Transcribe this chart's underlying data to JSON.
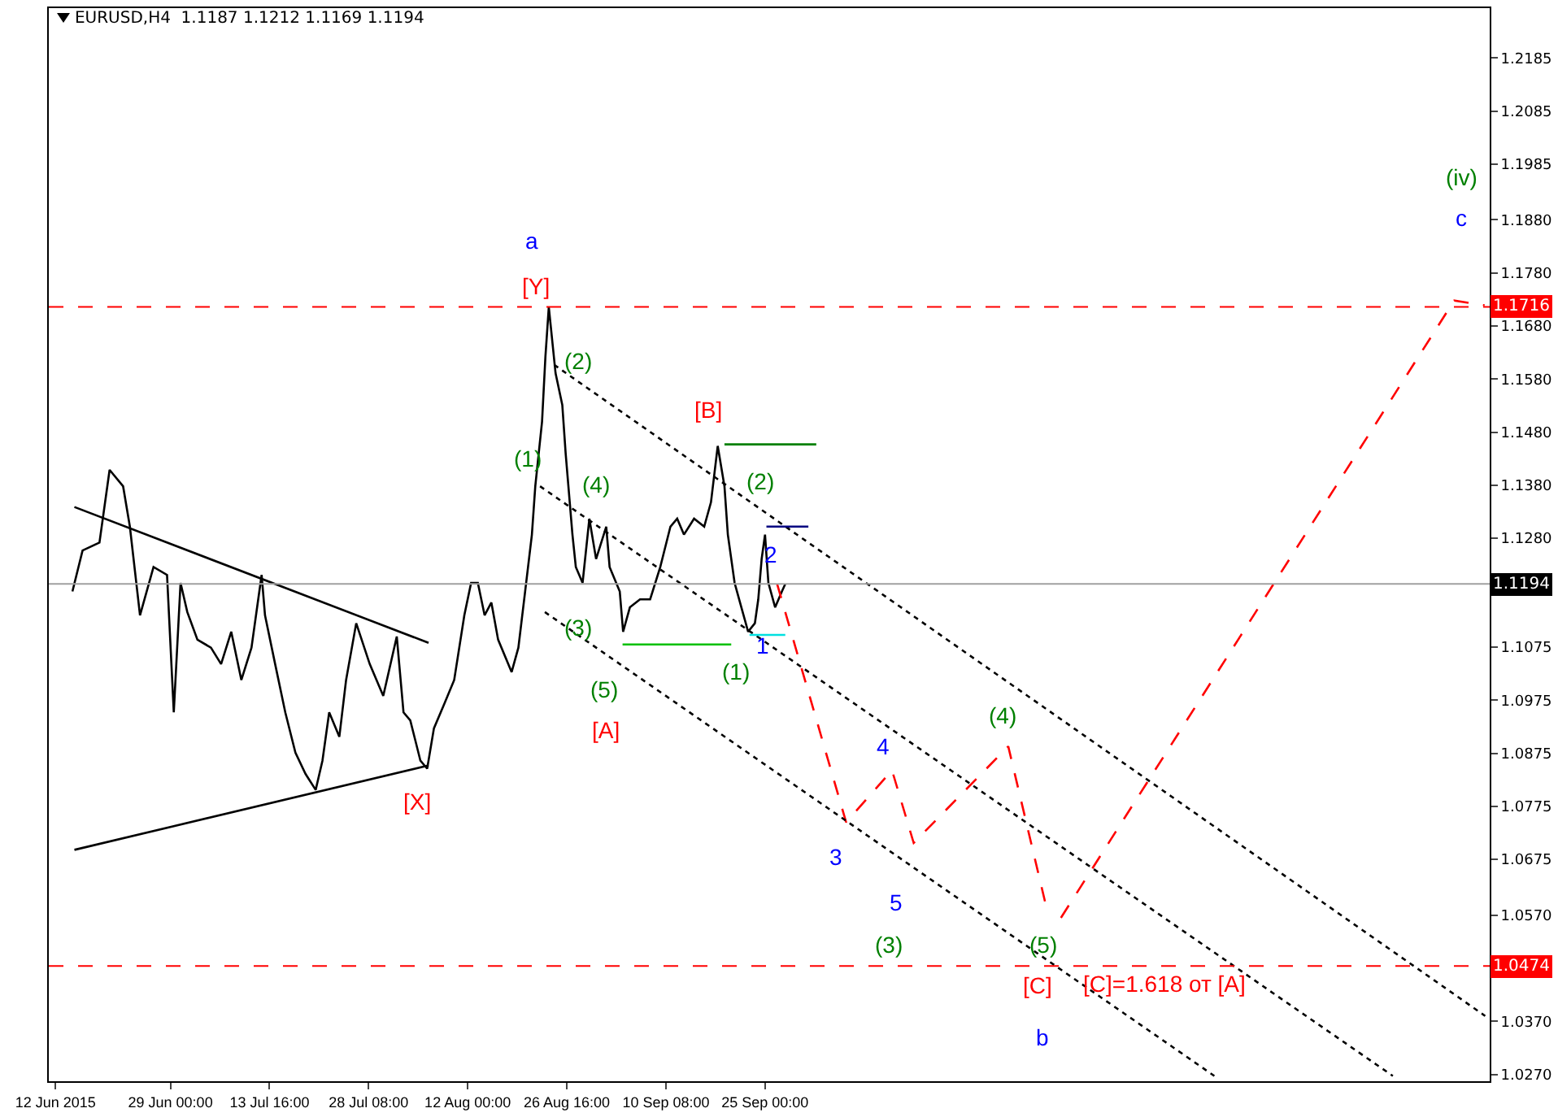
{
  "chart_data": {
    "type": "line",
    "title": "EURUSD,H4  1.1187 1.1212 1.1169 1.1194",
    "grid": false,
    "marker": "none",
    "xlim": [
      "2015-06-11T00:00",
      "2016-01-10T06:00"
    ],
    "xticks": [
      {
        "value": "2015-06-12",
        "label": "12 Jun 2015"
      },
      {
        "value": "2015-06-29",
        "label": "29 Jun 00:00"
      },
      {
        "value": "2015-07-13T16:00",
        "label": "13 Jul 16:00"
      },
      {
        "value": "2015-07-28T08:00",
        "label": "28 Jul 08:00"
      },
      {
        "value": "2015-08-12",
        "label": "12 Aug 00:00"
      },
      {
        "value": "2015-08-26T16:00",
        "label": "26 Aug 16:00"
      },
      {
        "value": "2015-09-10T08:00",
        "label": "10 Sep 08:00"
      },
      {
        "value": "2015-09-25",
        "label": "25 Sep 00:00"
      }
    ],
    "ylim": [
      1.0257,
      1.2279
    ],
    "yticks": [
      1.2185,
      1.2085,
      1.1985,
      {
        "value": 1.188,
        "label": "1.1880"
      },
      {
        "value": 1.178,
        "label": "1.1780"
      },
      {
        "value": 1.168,
        "label": "1.1680"
      },
      {
        "value": 1.158,
        "label": "1.1580"
      },
      {
        "value": 1.148,
        "label": "1.1480"
      },
      {
        "value": 1.138,
        "label": "1.1380"
      },
      {
        "value": 1.128,
        "label": "1.1280"
      },
      1.1075,
      1.0975,
      1.0875,
      1.0775,
      1.0675,
      {
        "value": 1.057,
        "label": "1.0570"
      },
      {
        "value": 1.037,
        "label": "1.0370"
      },
      {
        "value": 1.027,
        "label": "1.0270"
      }
    ],
    "series": [
      {
        "color": "#000000",
        "line_style": "solid",
        "x": [
          "2015-06-14T12:00",
          "2015-06-16",
          "2015-06-18T12:00",
          "2015-06-20",
          "2015-06-22",
          "2015-06-23",
          "2015-06-24T12:00",
          "2015-06-26T12:00",
          "2015-06-28T12:00",
          "2015-06-29T12:00",
          "2015-06-30T12:00",
          "2015-07-01T12:00",
          "2015-07-03",
          "2015-07-05",
          "2015-07-06T12:00",
          "2015-07-08",
          "2015-07-09T12:00",
          "2015-07-11",
          "2015-07-12T12:00",
          "2015-07-13",
          "2015-07-14T12:00",
          "2015-07-16",
          "2015-07-17T12:00",
          "2015-07-19",
          "2015-07-20T12:00",
          "2015-07-21T12:00",
          "2015-07-22T12:00",
          "2015-07-24",
          "2015-07-25",
          "2015-07-26T12:00",
          "2015-07-28T12:00",
          "2015-07-30T12:00",
          "2015-08-01T12:00",
          "2015-08-02T12:00",
          "2015-08-03T12:00",
          "2015-08-05",
          "2015-08-06",
          "2015-08-07",
          "2015-08-08T12:00",
          "2015-08-10",
          "2015-08-11T12:00",
          "2015-08-12T12:00",
          "2015-08-13T12:00",
          "2015-08-14T12:00",
          "2015-08-15T12:00",
          "2015-08-16T12:00",
          "2015-08-18T12:00",
          "2015-08-19T12:00",
          "2015-08-20T12:00",
          "2015-08-21T12:00",
          "2015-08-22",
          "2015-08-23",
          "2015-08-23T12:00",
          "2015-08-24",
          "2015-08-25",
          "2015-08-26",
          "2015-08-26T12:00",
          "2015-08-27T12:00",
          "2015-08-28",
          "2015-08-29",
          "2015-08-30",
          "2015-08-31",
          "2015-09-01T12:00",
          "2015-09-02",
          "2015-09-03T12:00",
          "2015-09-04",
          "2015-09-05",
          "2015-09-06T12:00",
          "2015-09-08",
          "2015-09-09T12:00",
          "2015-09-11",
          "2015-09-12",
          "2015-09-13",
          "2015-09-14T12:00",
          "2015-09-16",
          "2015-09-17",
          "2015-09-18",
          "2015-09-19",
          "2015-09-19T12:00",
          "2015-09-20T12:00",
          "2015-09-21T12:00",
          "2015-09-22T12:00",
          "2015-09-23T12:00",
          "2015-09-24",
          "2015-09-24T12:00",
          "2015-09-25",
          "2015-09-25T12:00",
          "2015-09-26T12:00",
          "2015-09-27T12:00",
          "2015-09-28"
        ],
        "values": [
          1.118,
          1.1257,
          1.1272,
          1.1409,
          1.1378,
          1.1302,
          1.1135,
          1.1226,
          1.1211,
          1.0952,
          1.1196,
          1.1141,
          1.1089,
          1.1074,
          1.1043,
          1.1104,
          1.1013,
          1.1074,
          1.1211,
          1.1135,
          1.1043,
          1.0952,
          1.0876,
          1.0836,
          1.0806,
          1.0861,
          1.0952,
          1.0906,
          1.1013,
          1.112,
          1.1043,
          1.0983,
          1.1095,
          1.0952,
          1.0937,
          1.0861,
          1.0846,
          1.0922,
          1.0967,
          1.1013,
          1.1135,
          1.1196,
          1.1196,
          1.1135,
          1.1159,
          1.1089,
          1.1028,
          1.1074,
          1.118,
          1.1287,
          1.1378,
          1.15,
          1.1622,
          1.1716,
          1.1591,
          1.1531,
          1.1439,
          1.1287,
          1.1226,
          1.1196,
          1.1317,
          1.1241,
          1.1302,
          1.1226,
          1.118,
          1.1104,
          1.115,
          1.1165,
          1.1165,
          1.1226,
          1.1302,
          1.1317,
          1.1287,
          1.1317,
          1.1302,
          1.1348,
          1.1454,
          1.1378,
          1.1287,
          1.1196,
          1.115,
          1.1104,
          1.112,
          1.1165,
          1.1241,
          1.1287,
          1.1196,
          1.115,
          1.118,
          1.1194
        ]
      },
      {
        "color": "#ff0000",
        "line_style": "dashed",
        "x": [
          "2015-09-26T19:00",
          "2015-10-07",
          "2015-10-13T19:00",
          "2015-10-17",
          "2015-10-31",
          "2015-11-05T17:00",
          "2015-11-06T18:00",
          "2015-11-07T19:00",
          "2016-01-05",
          "2016-01-09T12:00"
        ],
        "values": [
          1.1194,
          1.0745,
          1.0843,
          1.0706,
          1.0888,
          1.0581,
          null,
          1.0565,
          1.1728,
          1.1719
        ]
      },
      {
        "color": "#000000",
        "line_style": "solid",
        "x": [
          "2015-06-14T19:00",
          "2015-08-06T05:00"
        ],
        "values": [
          1.1339,
          1.1083
        ]
      },
      {
        "color": "#000000",
        "line_style": "solid",
        "x": [
          "2015-06-14T19:00",
          "2015-08-06T05:00"
        ],
        "values": [
          1.0693,
          1.0852
        ]
      },
      {
        "color": "#000000",
        "line_style": "dotted",
        "x": [
          "2015-08-24T19:00",
          "2016-01-09T14:00"
        ],
        "values": [
          1.1607,
          1.038
        ]
      },
      {
        "color": "#000000",
        "line_style": "dotted",
        "x": [
          "2015-08-22T17:00",
          "2015-12-26T22:00"
        ],
        "values": [
          1.1378,
          1.0267
        ]
      },
      {
        "color": "#000000",
        "line_style": "dotted",
        "x": [
          "2015-08-23T10:00",
          "2015-11-30T12:00"
        ],
        "values": [
          1.1141,
          1.0267
        ]
      },
      {
        "color": "#008000",
        "line_style": "solid",
        "x": [
          "2015-09-19",
          "2015-10-02T14:00"
        ],
        "values": [
          1.1457,
          1.1457
        ]
      },
      {
        "color": "#00c000",
        "line_style": "solid",
        "x": [
          "2015-09-03T22:00",
          "2015-09-20"
        ],
        "values": [
          1.108,
          1.108
        ]
      },
      {
        "color": "#000080",
        "line_style": "solid",
        "x": [
          "2015-09-25T05:00",
          "2015-10-01T10:00"
        ],
        "values": [
          1.1302,
          1.1302
        ]
      },
      {
        "color": "#00e0e0",
        "line_style": "solid",
        "x": [
          "2015-09-22T17:00",
          "2015-09-28"
        ],
        "values": [
          1.1098,
          1.1098
        ]
      }
    ],
    "ref_lines": [
      {
        "axis": "y",
        "value": 1.1716,
        "label": "1.1716",
        "color": "#ff0000",
        "line_style": "dashed"
      },
      {
        "axis": "y",
        "value": 1.1194,
        "label": "1.1194",
        "color": "#a0a0a0",
        "line_style": "solid"
      },
      {
        "axis": "y",
        "value": 1.0474,
        "label": "1.0474",
        "color": "#ff0000",
        "line_style": "dashed"
      }
    ],
    "annotations": [
      "a",
      "[Y]",
      "(2)",
      "(1)",
      "(4)",
      "(3)",
      "(5)",
      "[A]",
      "[X]",
      "[B]",
      "(2)",
      "2",
      "1",
      "(1)",
      "4",
      "3",
      "(4)",
      "5",
      "(3)",
      "(5)",
      "[C]",
      "[C]=1.618 от [A]",
      "b",
      "(iv)",
      "c"
    ]
  }
}
